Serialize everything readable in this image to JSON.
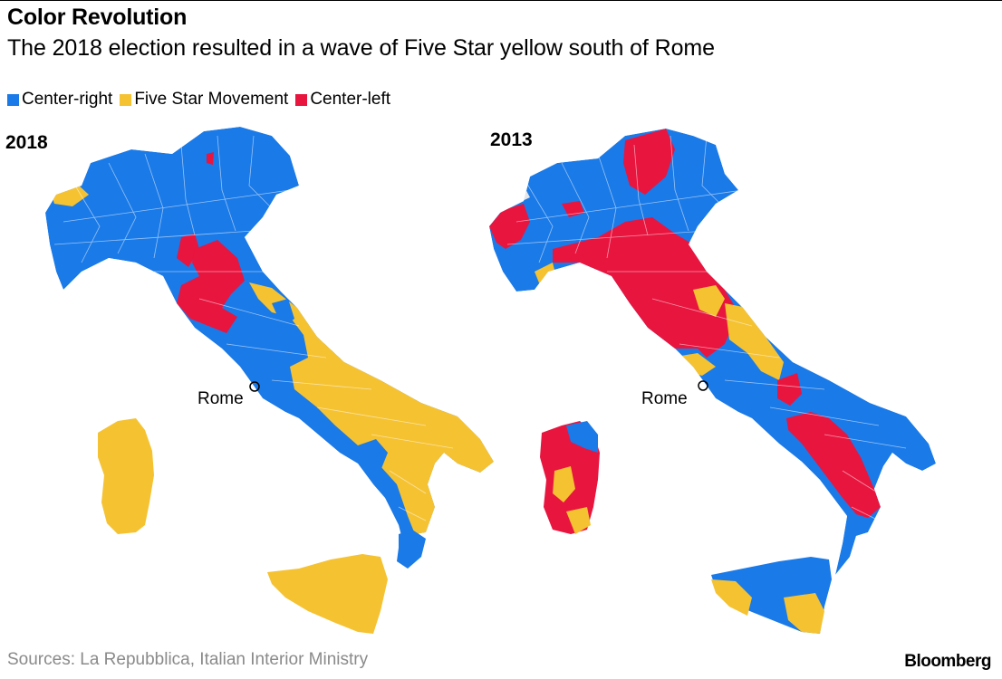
{
  "header": {
    "title": "Color Revolution",
    "subtitle": "The 2018 election resulted in a wave of Five Star yellow south of Rome"
  },
  "legend": [
    {
      "label": "Center-right",
      "color": "#1a7ae8"
    },
    {
      "label": "Five Star Movement",
      "color": "#f5c232"
    },
    {
      "label": "Center-left",
      "color": "#e8153f"
    }
  ],
  "maps": {
    "left": {
      "year": "2018",
      "city_label": "Rome"
    },
    "right": {
      "year": "2013",
      "city_label": "Rome"
    }
  },
  "colors": {
    "center_right": "#1a7ae8",
    "five_star": "#f5c232",
    "center_left": "#e8153f",
    "other": "#e6e6e6",
    "border": "#ffffff"
  },
  "footer": {
    "source": "Sources: La Repubblica, Italian Interior Ministry",
    "brand": "Bloomberg"
  }
}
